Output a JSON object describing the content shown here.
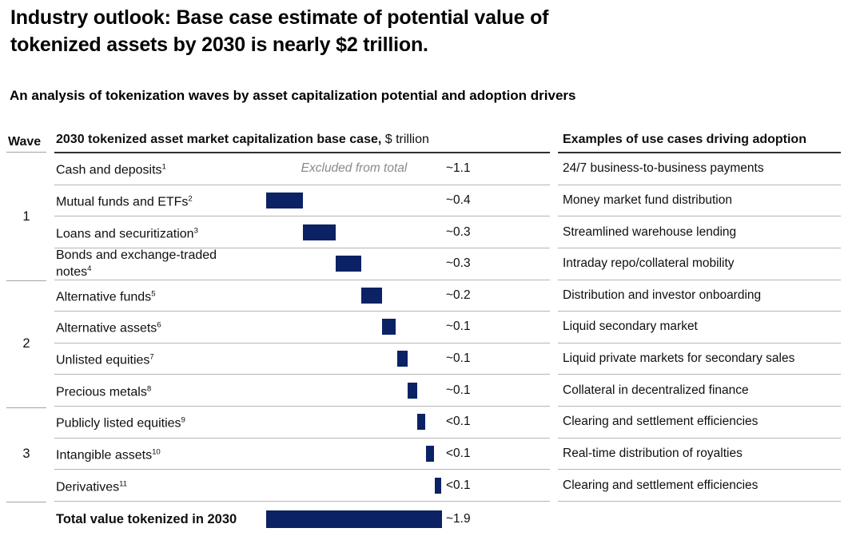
{
  "accent_color": "#0b2265",
  "rule_color_dark": "#2f2f2f",
  "rule_color_light": "#b5b5b5",
  "header": {
    "title_line1": "Industry outlook: Base case estimate of potential value of",
    "title_line2": "tokenized assets by 2030 is nearly $2 trillion.",
    "subtitle": "An analysis of tokenization waves by asset capitalization potential and adoption drivers"
  },
  "table": {
    "wave_header": "Wave",
    "main_header_bold": "2030 tokenized asset market capitalization base case,",
    "main_header_unit": " $ trillion",
    "examples_header": "Examples of use cases driving adoption",
    "waves": [
      {
        "label": "1"
      },
      {
        "label": "2"
      },
      {
        "label": "3"
      }
    ],
    "rows": [
      {
        "label": "Cash and deposits",
        "sup": "1",
        "value": "~1.1",
        "note": "Excluded from total",
        "example": "24/7 business-to-business payments",
        "wave": "1",
        "bar": null
      },
      {
        "label": "Mutual funds and ETFs",
        "sup": "2",
        "value": "~0.4",
        "example": "Money market fund distribution",
        "wave": "1",
        "bar": {
          "from": 0.0,
          "to": 0.4
        }
      },
      {
        "label": "Loans and securitization",
        "sup": "3",
        "value": "~0.3",
        "example": "Streamlined warehouse lending",
        "wave": "1",
        "bar": {
          "from": 0.4,
          "to": 0.75
        }
      },
      {
        "label": "Bonds and exchange-traded",
        "label2": "notes",
        "sup": "4",
        "value": "~0.3",
        "example": "Intraday repo/collateral mobility",
        "wave": "1",
        "bar": {
          "from": 0.75,
          "to": 1.03
        }
      },
      {
        "label": "Alternative funds",
        "sup": "5",
        "value": "~0.2",
        "example": "Distribution and investor onboarding",
        "wave": "2",
        "bar": {
          "from": 1.03,
          "to": 1.25
        }
      },
      {
        "label": "Alternative assets",
        "sup": "6",
        "value": "~0.1",
        "example": "Liquid secondary market",
        "wave": "2",
        "bar": {
          "from": 1.25,
          "to": 1.4
        }
      },
      {
        "label": "Unlisted equities",
        "sup": "7",
        "value": "~0.1",
        "example": "Liquid private markets for secondary sales",
        "wave": "2",
        "bar": {
          "from": 1.42,
          "to": 1.53
        }
      },
      {
        "label": "Precious metals",
        "sup": "8",
        "value": "~0.1",
        "example": "Collateral in decentralized finance",
        "wave": "2",
        "bar": {
          "from": 1.53,
          "to": 1.63
        }
      },
      {
        "label": "Publicly listed equities",
        "sup": "9",
        "value": "<0.1",
        "example": "Clearing and settlement efficiencies",
        "wave": "3",
        "bar": {
          "from": 1.63,
          "to": 1.72
        }
      },
      {
        "label": "Intangible assets",
        "sup": "10",
        "value": "<0.1",
        "example": "Real-time distribution of royalties",
        "wave": "3",
        "bar": {
          "from": 1.73,
          "to": 1.81
        }
      },
      {
        "label": "Derivatives",
        "sup": "11",
        "value": "<0.1",
        "example": "Clearing and settlement efficiencies",
        "wave": "3",
        "bar": {
          "from": 1.82,
          "to": 1.89
        }
      }
    ],
    "total": {
      "label": "Total value tokenized in 2030",
      "value": "~1.9",
      "bar": {
        "from": 0.0,
        "to": 1.9
      }
    },
    "scale_max_trillion": 1.9
  },
  "chart_data": {
    "type": "bar",
    "subtype": "waterfall",
    "title": "2030 tokenized asset market capitalization base case, $ trillion",
    "categories": [
      "Cash and deposits",
      "Mutual funds and ETFs",
      "Loans and securitization",
      "Bonds and exchange-traded notes",
      "Alternative funds",
      "Alternative assets",
      "Unlisted equities",
      "Precious metals",
      "Publicly listed equities",
      "Intangible assets",
      "Derivatives",
      "Total value tokenized in 2030"
    ],
    "values": [
      1.1,
      0.4,
      0.3,
      0.3,
      0.2,
      0.1,
      0.1,
      0.1,
      0.09,
      0.08,
      0.07,
      1.9
    ],
    "value_labels": [
      "~1.1",
      "~0.4",
      "~0.3",
      "~0.3",
      "~0.2",
      "~0.1",
      "~0.1",
      "~0.1",
      "<0.1",
      "<0.1",
      "<0.1",
      "~1.9"
    ],
    "annotations": [
      "Cash and deposits: Excluded from total"
    ],
    "orientation": "horizontal",
    "xlim": [
      0,
      1.9
    ],
    "grid": false,
    "legend": false,
    "bar_color": "#0b2265"
  }
}
